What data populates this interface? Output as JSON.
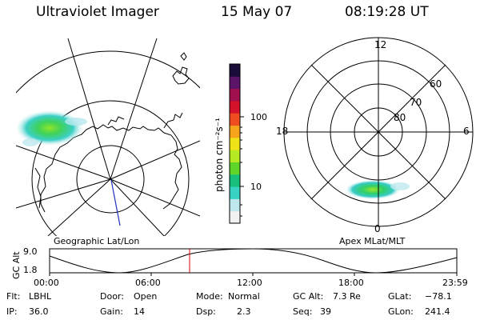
{
  "header": {
    "instrument": "Ultraviolet Imager",
    "date": "15 May 07",
    "time": "08:19:28 UT"
  },
  "left_map": {
    "label": "Geographic Lat/Lon"
  },
  "right_map": {
    "label": "Apex MLat/MLT",
    "mlt_labels": [
      "12",
      "18",
      "6",
      "0"
    ],
    "lat_labels": [
      "60",
      "70",
      "80"
    ]
  },
  "colorbar": {
    "unit_label": "photon cm⁻²s⁻¹",
    "ticks": [
      "100",
      "10"
    ]
  },
  "altitude_strip": {
    "axis_label": "GC Alt",
    "y_ticks": [
      "9.0",
      "1.8"
    ],
    "x_ticks": [
      "00:00",
      "06:00",
      "12:00",
      "18:00",
      "23:59"
    ]
  },
  "info_rows": [
    [
      {
        "key": "Flt:",
        "value": "LBHL"
      },
      {
        "key": "Door:",
        "value": "Open"
      },
      {
        "key": "Mode:",
        "value": "Normal"
      },
      {
        "key": "GC Alt:",
        "value": "7.3 Re"
      },
      {
        "key": "GLat:",
        "value": "−78.1"
      }
    ],
    [
      {
        "key": "IP:",
        "value": "36.0"
      },
      {
        "key": "Gain:",
        "value": "14"
      },
      {
        "key": "Dsp:",
        "value": "2.3"
      },
      {
        "key": "Seq:",
        "value": "39"
      },
      {
        "key": "GLon:",
        "value": "241.4"
      }
    ]
  ],
  "colors": {
    "colorbar": [
      "#f2f2f2",
      "#bfe8ee",
      "#39d3c4",
      "#16c07a",
      "#5fd52a",
      "#b6ea22",
      "#f0e218",
      "#f7a51a",
      "#ef4d20",
      "#d4122a",
      "#a10f4e",
      "#5b1468",
      "#1a0d3a"
    ],
    "time_marker": "#d40000",
    "nadir_line": "#2030c0"
  }
}
